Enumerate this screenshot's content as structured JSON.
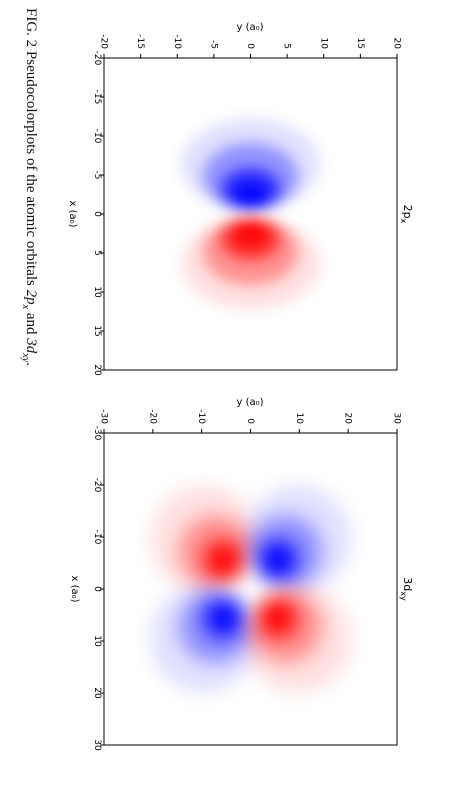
{
  "caption": {
    "prefix": "FIG. 2 Pseudocolorplots of the atomic orbitals ",
    "orb1_main": "2p",
    "orb1_sub": "x",
    "and": " and ",
    "orb2_main": "3d",
    "orb2_sub": "xy",
    "suffix": "."
  },
  "colors": {
    "positive": "#ff0000",
    "negative": "#0000ff",
    "background": "#ffffff"
  },
  "chart_data": [
    {
      "type": "heatmap",
      "title": "2p_x",
      "title_main": "2p",
      "title_sub": "x",
      "xlabel": "x (a₀)",
      "ylabel": "y (a₀)",
      "xlim": [
        -20,
        20
      ],
      "ylim": [
        -20,
        20
      ],
      "xticks": [
        -20,
        -15,
        -10,
        -5,
        0,
        5,
        10,
        15,
        20
      ],
      "yticks": [
        -20,
        -15,
        -10,
        -5,
        0,
        5,
        10,
        15,
        20
      ],
      "function": "x * exp(-r/2)",
      "colormap": "bwr",
      "negative_lobe_x": -2,
      "positive_lobe_x": 2
    },
    {
      "type": "heatmap",
      "title": "3d_xy",
      "title_main": "3d",
      "title_sub": "xy",
      "xlabel": "x (a₀)",
      "ylabel": "y (a₀)",
      "xlim": [
        -30,
        30
      ],
      "ylim": [
        -30,
        30
      ],
      "xticks": [
        -30,
        -20,
        -10,
        0,
        10,
        20,
        30
      ],
      "yticks": [
        -30,
        -20,
        -10,
        0,
        10,
        20,
        30
      ],
      "function": "x * y * exp(-r/3)",
      "colormap": "bwr",
      "lobe_radius": 6
    }
  ]
}
